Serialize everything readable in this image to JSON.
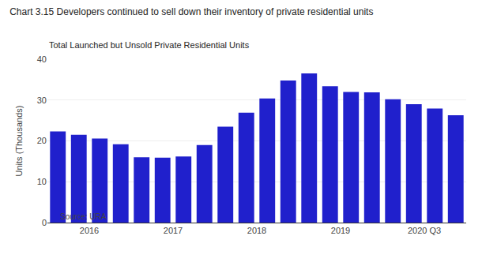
{
  "chart_data": {
    "type": "bar",
    "title": "Chart 3.15 Developers continued to sell down their inventory of private residential units",
    "subtitle": "Total Launched but Unsold Private Residential Units",
    "annotations": [
      "Source: URA"
    ],
    "ylabel": "Units (Thousands)",
    "categories": [
      "2016",
      null,
      null,
      null,
      "2017",
      null,
      null,
      null,
      "2018",
      null,
      null,
      null,
      "2019",
      null,
      null,
      null,
      "2020 Q3",
      null,
      null,
      null
    ],
    "values": [
      22.3,
      21.5,
      20.6,
      19.2,
      16.0,
      15.9,
      16.2,
      19.0,
      23.5,
      26.9,
      30.4,
      34.8,
      36.5,
      33.4,
      32.0,
      31.9,
      30.2,
      29.0,
      27.9,
      26.3
    ],
    "color": "#2020CC",
    "ylim": [
      0,
      40
    ],
    "yticks": [
      0,
      10,
      20,
      30,
      40
    ],
    "grid": true
  }
}
